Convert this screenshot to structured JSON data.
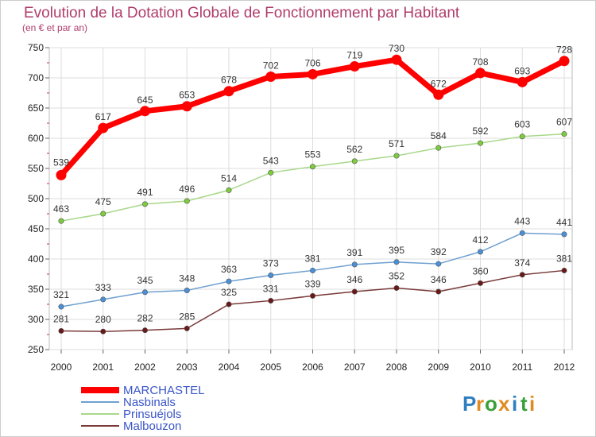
{
  "chart_data": {
    "type": "line",
    "title": "Evolution de la Dotation Globale de Fonctionnement par Habitant",
    "subtitle": "(en € et par an)",
    "xlabel": "",
    "ylabel": "",
    "categories": [
      "2000",
      "2001",
      "2002",
      "2003",
      "2004",
      "2005",
      "2006",
      "2007",
      "2008",
      "2009",
      "2010",
      "2011",
      "2012"
    ],
    "ylim": [
      250,
      750
    ],
    "yticks": [
      250,
      300,
      350,
      400,
      450,
      500,
      550,
      600,
      650,
      700,
      750
    ],
    "grid": true,
    "legend_position": "bottom-left",
    "series": [
      {
        "name": "MARCHASTEL",
        "color": "#ff0000",
        "marker_color": "#ff0000",
        "values": [
          539,
          617,
          645,
          653,
          678,
          702,
          706,
          719,
          730,
          672,
          708,
          693,
          728
        ]
      },
      {
        "name": "Nasbinals",
        "color": "#6fa0d0",
        "marker_color": "#4a90d9",
        "values": [
          321,
          333,
          345,
          348,
          363,
          373,
          381,
          391,
          395,
          392,
          412,
          443,
          441
        ]
      },
      {
        "name": "Prinsuéjols",
        "color": "#a8d88a",
        "marker_color": "#7ccc3c",
        "values": [
          463,
          475,
          491,
          496,
          514,
          543,
          553,
          562,
          571,
          584,
          592,
          603,
          607
        ]
      },
      {
        "name": "Malbouzon",
        "color": "#7a3a3a",
        "marker_color": "#6a1818",
        "values": [
          281,
          280,
          282,
          285,
          325,
          331,
          339,
          346,
          352,
          346,
          360,
          374,
          381
        ]
      }
    ]
  },
  "logo": {
    "letters": [
      "P",
      "r",
      "o",
      "x",
      "i",
      "t",
      "i"
    ],
    "colors": [
      "#2f7fc0",
      "#e08a20",
      "#3aa03a",
      "#e08a20",
      "#2f7fc0",
      "#3aa03a",
      "#e08a20"
    ]
  }
}
